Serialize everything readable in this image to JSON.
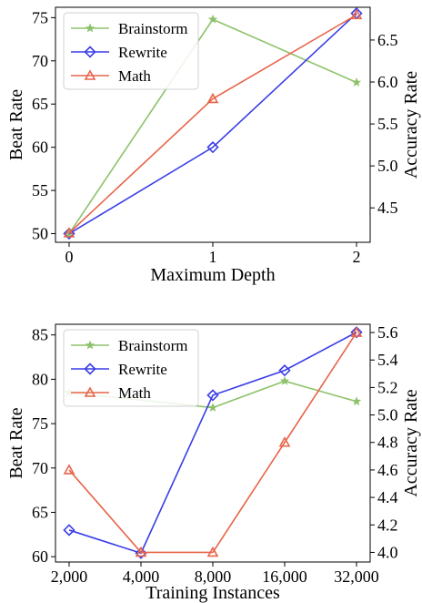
{
  "chart_data": [
    {
      "type": "line",
      "x_categories": [
        "0",
        "1",
        "2"
      ],
      "xlabel": "Maximum Depth",
      "ylabel_left": "Beat Rate",
      "ylabel_right": "Accuracy Rate",
      "ylim_left": [
        49,
        76.2
      ],
      "yticks_left": [
        50,
        55,
        60,
        65,
        70,
        75
      ],
      "ylim_right": [
        4.09,
        6.89
      ],
      "yticks_right": [
        "4.5",
        "5.0",
        "5.5",
        "6.0",
        "6.5"
      ],
      "legend_position": "upper-left",
      "series": [
        {
          "name": "Brainstorm",
          "axis": "left",
          "color": "#8dc26a",
          "marker": "star",
          "values": [
            50,
            74.8,
            67.5
          ]
        },
        {
          "name": "Rewrite",
          "axis": "left",
          "color": "#3a3ee6",
          "marker": "diamond",
          "values": [
            50,
            60,
            75.5
          ]
        },
        {
          "name": "Math",
          "axis": "right",
          "color": "#e8654a",
          "marker": "triangle",
          "values": [
            4.2,
            5.8,
            6.8
          ]
        }
      ]
    },
    {
      "type": "line",
      "x_categories": [
        "2,000",
        "4,000",
        "8,000",
        "16,000",
        "32,000"
      ],
      "xlabel": "Training Instances",
      "ylabel_left": "Beat Rate",
      "ylabel_right": "Accuracy Rate",
      "ylim_left": [
        59.4,
        86.2
      ],
      "yticks_left": [
        60,
        65,
        70,
        75,
        80,
        85
      ],
      "ylim_right": [
        3.93,
        5.66
      ],
      "yticks_right": [
        "4.0",
        "4.2",
        "4.4",
        "4.6",
        "4.8",
        "5.0",
        "5.2",
        "5.4",
        "5.6"
      ],
      "legend_position": "upper-left",
      "series": [
        {
          "name": "Brainstorm",
          "axis": "left",
          "color": "#8dc26a",
          "marker": "star",
          "values": [
            78.5,
            null,
            76.8,
            79.8,
            77.5
          ]
        },
        {
          "name": "Rewrite",
          "axis": "left",
          "color": "#3a3ee6",
          "marker": "diamond",
          "values": [
            63.0,
            60.4,
            78.2,
            81.0,
            85.3
          ]
        },
        {
          "name": "Math",
          "axis": "right",
          "color": "#e8654a",
          "marker": "triangle",
          "values": [
            4.6,
            4.0,
            4.0,
            4.8,
            5.6
          ]
        }
      ]
    }
  ]
}
